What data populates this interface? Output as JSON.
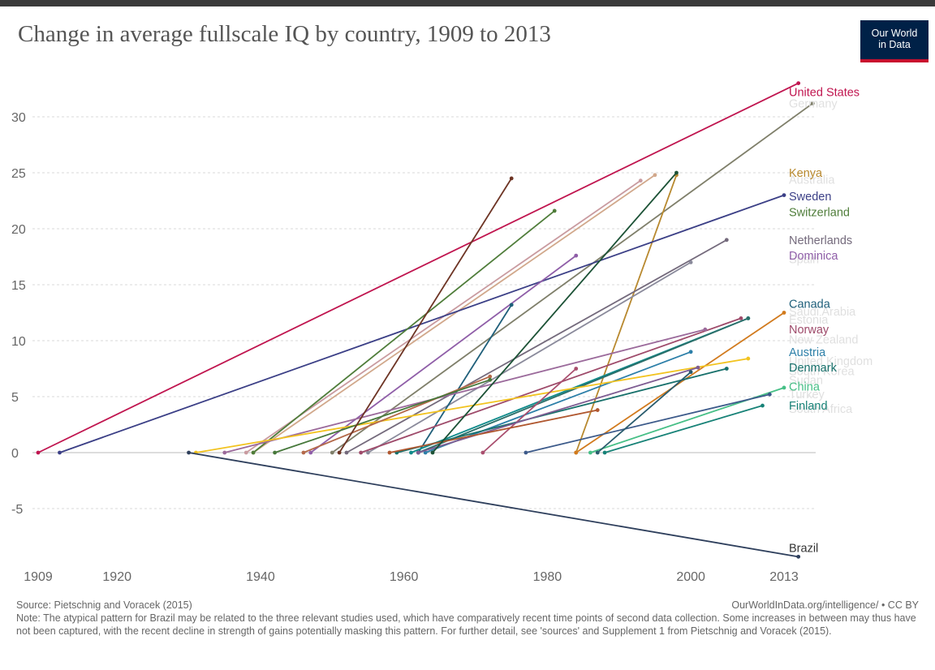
{
  "header": {
    "title": "Change in average fullscale IQ by country, 1909 to 2013",
    "logo_line1": "Our World",
    "logo_line2": "in Data"
  },
  "footer": {
    "source": "Source: Pietschnig and Voracek (2015)",
    "url": "OurWorldInData.org/intelligence/ • CC BY",
    "note": "Note: The atypical pattern for Brazil may be related to the three relevant studies used, which have comparatively recent time points of second data collection. Some increases in between may thus have not been captured, with the recent decline in strength of gains potentially masking this pattern. For further detail, see 'sources' and Supplement 1 from Pietschnig and Voracek (2015)."
  },
  "chart_data": {
    "type": "line",
    "title": "Change in average fullscale IQ by country, 1909 to 2013",
    "xlabel": "",
    "ylabel": "",
    "xlim": [
      1909,
      2013
    ],
    "ylim": [
      -9.5,
      33
    ],
    "x_ticks": [
      "1909",
      "1920",
      "1940",
      "1960",
      "1980",
      "2000",
      "2013"
    ],
    "x_tick_values": [
      1909,
      1920,
      1940,
      1960,
      1980,
      2000,
      2013
    ],
    "y_ticks": [
      -5,
      0,
      5,
      10,
      15,
      20,
      25,
      30
    ],
    "grid": "horizontal dotted",
    "legend": "right",
    "series": [
      {
        "name": "United States",
        "color": "#c0154f",
        "x": [
          1909,
          2015
        ],
        "y": [
          0,
          33
        ]
      },
      {
        "name": "Germany",
        "color": "#7f7f6a",
        "x": [
          1950,
          2017
        ],
        "y": [
          0,
          31.2
        ]
      },
      {
        "name": "Kenya",
        "color": "#b8892f",
        "x": [
          1984,
          1998
        ],
        "y": [
          0,
          24.8
        ]
      },
      {
        "name": "",
        "color": "#d1a88b",
        "x": [
          1939,
          1995
        ],
        "y": [
          0,
          24.8
        ]
      },
      {
        "name": "",
        "color": "#c99ba0",
        "x": [
          1938,
          1993
        ],
        "y": [
          0,
          24.3
        ]
      },
      {
        "name": "Sweden",
        "color": "#3b3f86",
        "x": [
          1912,
          2013
        ],
        "y": [
          0,
          23
        ]
      },
      {
        "name": "Switzerland",
        "color": "#4f7d3a",
        "x": [
          1939,
          1981
        ],
        "y": [
          0,
          21.6
        ]
      },
      {
        "name": "Netherlands",
        "color": "#746a7c",
        "x": [
          1952,
          2005
        ],
        "y": [
          0,
          19
        ]
      },
      {
        "name": "Dominica",
        "color": "#8f5ea8",
        "x": [
          1947,
          1984
        ],
        "y": [
          0,
          17.6
        ]
      },
      {
        "name": "",
        "color": "#8a8a9b",
        "x": [
          1955,
          2000
        ],
        "y": [
          0,
          17
        ]
      },
      {
        "name": "Canada",
        "color": "#1f5f7a",
        "x": [
          1962,
          1975
        ],
        "y": [
          0,
          13.2
        ]
      },
      {
        "name": "",
        "color": "#d17a1d",
        "x": [
          1984,
          2013
        ],
        "y": [
          0,
          12.5
        ]
      },
      {
        "name": "Norway",
        "color": "#9e4a6a",
        "x": [
          1954,
          2007
        ],
        "y": [
          0,
          12
        ]
      },
      {
        "name": "",
        "color": "#0e8a8a",
        "x": [
          1961,
          2008
        ],
        "y": [
          0,
          12
        ]
      },
      {
        "name": "",
        "color": "#2b6f6a",
        "x": [
          1962,
          2008
        ],
        "y": [
          0,
          12
        ]
      },
      {
        "name": "",
        "color": "#9b6a9b",
        "x": [
          1935,
          2002
        ],
        "y": [
          0,
          11
        ]
      },
      {
        "name": "Austria",
        "color": "#2c7fa8",
        "x": [
          1963,
          2000
        ],
        "y": [
          0,
          9
        ]
      },
      {
        "name": "",
        "color": "#f2c31f",
        "x": [
          1931,
          2008
        ],
        "y": [
          0,
          8.4
        ]
      },
      {
        "name": "Denmark",
        "color": "#17706b",
        "x": [
          1959,
          2005
        ],
        "y": [
          0,
          7.5
        ]
      },
      {
        "name": "",
        "color": "#a94e6e",
        "x": [
          1971,
          1984
        ],
        "y": [
          0,
          7.5
        ]
      },
      {
        "name": "",
        "color": "#b4694a",
        "x": [
          1946,
          1972
        ],
        "y": [
          0,
          6.8
        ]
      },
      {
        "name": "",
        "color": "#46783a",
        "x": [
          1942,
          1972
        ],
        "y": [
          0,
          6.5
        ]
      },
      {
        "name": "",
        "color": "#7e5c92",
        "x": [
          1962,
          2001
        ],
        "y": [
          0,
          7.6
        ]
      },
      {
        "name": "China",
        "color": "#46bf86",
        "x": [
          1986,
          2013
        ],
        "y": [
          0,
          5.8
        ]
      },
      {
        "name": "",
        "color": "#3c5a8a",
        "x": [
          1977,
          2011
        ],
        "y": [
          0,
          5.2
        ]
      },
      {
        "name": "Finland",
        "color": "#178277",
        "x": [
          1988,
          2010
        ],
        "y": [
          0,
          4.2
        ]
      },
      {
        "name": "",
        "color": "#2a5c6e",
        "x": [
          1987,
          2000
        ],
        "y": [
          0,
          7.2
        ]
      },
      {
        "name": "",
        "color": "#b0572f",
        "x": [
          1958,
          1987
        ],
        "y": [
          0,
          3.8
        ]
      },
      {
        "name": "",
        "color": "#1c5236",
        "x": [
          1964,
          1998
        ],
        "y": [
          0,
          25
        ]
      },
      {
        "name": "",
        "color": "#6d3424",
        "x": [
          1951,
          1975
        ],
        "y": [
          0,
          24.5
        ]
      },
      {
        "name": "Brazil",
        "color": "#2e3f5c",
        "x": [
          1930,
          2015
        ],
        "y": [
          0,
          -9.3
        ]
      }
    ],
    "faint_labels": [
      {
        "text": "Germany",
        "y": 31.2
      },
      {
        "text": "Australia",
        "y": 24.4
      },
      {
        "text": "Spain",
        "y": 17.3
      },
      {
        "text": "Saudi Arabia",
        "y": 12.6
      },
      {
        "text": "Estonia",
        "y": 11.9
      },
      {
        "text": "New Zealand",
        "y": 10.1
      },
      {
        "text": "United Kingdom",
        "y": 8.2
      },
      {
        "text": "South Korea",
        "y": 7.3
      },
      {
        "text": "Sudan",
        "y": 6.5
      },
      {
        "text": "Turkey",
        "y": 5.2
      },
      {
        "text": "South Africa",
        "y": 3.9
      }
    ],
    "labels": [
      {
        "text": "United States",
        "y": 32.2,
        "color": "#c0154f"
      },
      {
        "text": "Kenya",
        "y": 25.0,
        "color": "#b8892f"
      },
      {
        "text": "Sweden",
        "y": 22.9,
        "color": "#3b3f86"
      },
      {
        "text": "Switzerland",
        "y": 21.5,
        "color": "#4f7d3a"
      },
      {
        "text": "Netherlands",
        "y": 19.0,
        "color": "#746a7c"
      },
      {
        "text": "Dominica",
        "y": 17.6,
        "color": "#8f5ea8"
      },
      {
        "text": "Canada",
        "y": 13.3,
        "color": "#1f5f7a"
      },
      {
        "text": "Norway",
        "y": 11.0,
        "color": "#9e4a6a"
      },
      {
        "text": "Austria",
        "y": 9.0,
        "color": "#2c7fa8"
      },
      {
        "text": "Denmark",
        "y": 7.6,
        "color": "#17706b"
      },
      {
        "text": "China",
        "y": 5.9,
        "color": "#46bf86"
      },
      {
        "text": "Finland",
        "y": 4.2,
        "color": "#178277"
      },
      {
        "text": "Brazil",
        "y": -8.5,
        "color": "#333333"
      }
    ]
  }
}
